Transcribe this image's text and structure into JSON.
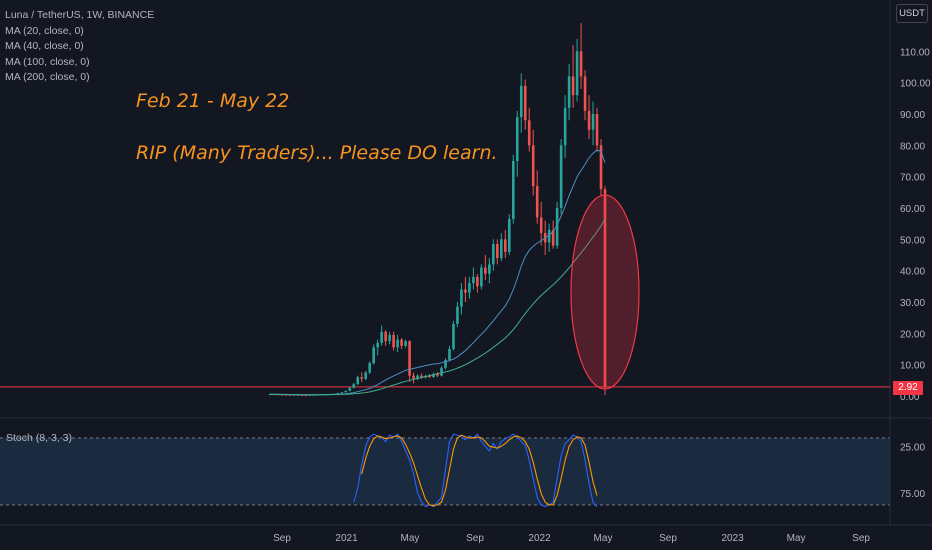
{
  "legend": {
    "symbol": "Luna / TetherUS, 1W, BINANCE",
    "indicators": [
      "MA (20, close, 0)",
      "MA (40, close, 0)",
      "MA (100, close, 0)",
      "MA (200, close, 0)"
    ]
  },
  "annotations": {
    "line1": "Feb 21 - May 22",
    "line2": "RIP (Many Traders)... Please DO learn."
  },
  "price_scale_unit": "USDT",
  "last_price_label": "2.92",
  "stoch_label": "Stoch (8, 3, 3)",
  "colors": {
    "background": "#131722",
    "up": "#26a69a",
    "down": "#ef5350",
    "ma_fast": "#4a90c2",
    "ma_slow": "#3fae8f",
    "annotation": "#f7941d",
    "stoch_k": "#2962ff",
    "stoch_d": "#ff9800",
    "highlight_ellipse": "#f23645"
  },
  "chart_data": [
    {
      "type": "candlestick",
      "yaxis": {
        "min": 0,
        "max": 120,
        "ticks": [
          0,
          10,
          20,
          30,
          40,
          50,
          60,
          70,
          80,
          90,
          100,
          110
        ],
        "tick_labels": [
          "0.00",
          "10.00",
          "20.00",
          "30.00",
          "40.00",
          "50.00",
          "60.00",
          "70.00",
          "80.00",
          "90.00",
          "100.00",
          "110.00"
        ]
      },
      "xaxis": {
        "tick_labels": [
          "Sep",
          "2021",
          "May",
          "Sep",
          "2022",
          "May",
          "Sep",
          "2023",
          "May",
          "Sep"
        ],
        "tick_dates": [
          "2020-09-01",
          "2021-01-01",
          "2021-05-01",
          "2021-09-01",
          "2022-01-01",
          "2022-05-01",
          "2022-09-01",
          "2023-01-01",
          "2023-05-01",
          "2023-09-01"
        ]
      },
      "candles": [
        {
          "o": 0.6,
          "h": 0.7,
          "l": 0.5,
          "c": 0.6
        },
        {
          "o": 0.6,
          "h": 0.7,
          "l": 0.5,
          "c": 0.55
        },
        {
          "o": 0.55,
          "h": 0.6,
          "l": 0.4,
          "c": 0.5
        },
        {
          "o": 0.5,
          "h": 0.6,
          "l": 0.4,
          "c": 0.45
        },
        {
          "o": 0.45,
          "h": 0.55,
          "l": 0.35,
          "c": 0.4
        },
        {
          "o": 0.4,
          "h": 0.5,
          "l": 0.3,
          "c": 0.35
        },
        {
          "o": 0.35,
          "h": 0.45,
          "l": 0.3,
          "c": 0.4
        },
        {
          "o": 0.4,
          "h": 0.5,
          "l": 0.3,
          "c": 0.35
        },
        {
          "o": 0.35,
          "h": 0.45,
          "l": 0.3,
          "c": 0.32
        },
        {
          "o": 0.32,
          "h": 0.4,
          "l": 0.25,
          "c": 0.3
        },
        {
          "o": 0.3,
          "h": 0.4,
          "l": 0.25,
          "c": 0.35
        },
        {
          "o": 0.35,
          "h": 0.45,
          "l": 0.3,
          "c": 0.4
        },
        {
          "o": 0.4,
          "h": 0.5,
          "l": 0.35,
          "c": 0.45
        },
        {
          "o": 0.45,
          "h": 0.6,
          "l": 0.4,
          "c": 0.5
        },
        {
          "o": 0.5,
          "h": 0.6,
          "l": 0.45,
          "c": 0.55
        },
        {
          "o": 0.55,
          "h": 0.7,
          "l": 0.5,
          "c": 0.6
        },
        {
          "o": 0.6,
          "h": 0.8,
          "l": 0.55,
          "c": 0.7
        },
        {
          "o": 0.7,
          "h": 1.0,
          "l": 0.6,
          "c": 0.9
        },
        {
          "o": 0.9,
          "h": 1.3,
          "l": 0.8,
          "c": 1.2
        },
        {
          "o": 1.2,
          "h": 1.8,
          "l": 1.1,
          "c": 1.6
        },
        {
          "o": 1.6,
          "h": 3.0,
          "l": 1.5,
          "c": 2.6
        },
        {
          "o": 2.6,
          "h": 4.2,
          "l": 2.4,
          "c": 3.8
        },
        {
          "o": 3.8,
          "h": 6.5,
          "l": 3.5,
          "c": 6.0
        },
        {
          "o": 6.0,
          "h": 7.5,
          "l": 4.5,
          "c": 5.5
        },
        {
          "o": 5.5,
          "h": 8.0,
          "l": 5.0,
          "c": 7.5
        },
        {
          "o": 7.5,
          "h": 11.0,
          "l": 7.0,
          "c": 10.5
        },
        {
          "o": 10.5,
          "h": 16.5,
          "l": 10.0,
          "c": 15.5
        },
        {
          "o": 15.5,
          "h": 18.0,
          "l": 13.0,
          "c": 17.0
        },
        {
          "o": 17.0,
          "h": 22.5,
          "l": 16.0,
          "c": 20.5
        },
        {
          "o": 20.5,
          "h": 21.0,
          "l": 16.0,
          "c": 17.5
        },
        {
          "o": 17.5,
          "h": 20.5,
          "l": 16.5,
          "c": 19.5
        },
        {
          "o": 19.5,
          "h": 20.5,
          "l": 14.5,
          "c": 15.5
        },
        {
          "o": 15.5,
          "h": 19.5,
          "l": 14.0,
          "c": 18.0
        },
        {
          "o": 18.0,
          "h": 18.5,
          "l": 15.0,
          "c": 16.0
        },
        {
          "o": 16.0,
          "h": 18.0,
          "l": 15.5,
          "c": 17.5
        },
        {
          "o": 17.5,
          "h": 17.8,
          "l": 4.5,
          "c": 6.5
        },
        {
          "o": 6.5,
          "h": 7.5,
          "l": 4.0,
          "c": 5.5
        },
        {
          "o": 5.5,
          "h": 7.0,
          "l": 5.0,
          "c": 6.5
        },
        {
          "o": 6.5,
          "h": 7.2,
          "l": 5.5,
          "c": 6.0
        },
        {
          "o": 6.0,
          "h": 6.8,
          "l": 5.6,
          "c": 6.4
        },
        {
          "o": 6.4,
          "h": 7.0,
          "l": 5.8,
          "c": 6.0
        },
        {
          "o": 6.0,
          "h": 7.5,
          "l": 5.8,
          "c": 7.0
        },
        {
          "o": 7.0,
          "h": 7.6,
          "l": 6.0,
          "c": 6.5
        },
        {
          "o": 6.5,
          "h": 9.5,
          "l": 6.2,
          "c": 9.0
        },
        {
          "o": 9.0,
          "h": 12.0,
          "l": 8.5,
          "c": 11.5
        },
        {
          "o": 11.5,
          "h": 16.0,
          "l": 11.0,
          "c": 15.0
        },
        {
          "o": 15.0,
          "h": 24.0,
          "l": 14.5,
          "c": 23.0
        },
        {
          "o": 23.0,
          "h": 30.0,
          "l": 22.0,
          "c": 28.5
        },
        {
          "o": 28.5,
          "h": 36.0,
          "l": 26.0,
          "c": 34.0
        },
        {
          "o": 34.0,
          "h": 38.0,
          "l": 30.0,
          "c": 33.0
        },
        {
          "o": 33.0,
          "h": 38.0,
          "l": 31.0,
          "c": 36.0
        },
        {
          "o": 36.0,
          "h": 41.0,
          "l": 34.0,
          "c": 38.0
        },
        {
          "o": 38.0,
          "h": 39.0,
          "l": 33.0,
          "c": 35.0
        },
        {
          "o": 35.0,
          "h": 42.0,
          "l": 34.0,
          "c": 41.0
        },
        {
          "o": 41.0,
          "h": 45.0,
          "l": 37.0,
          "c": 39.0
        },
        {
          "o": 39.0,
          "h": 44.0,
          "l": 36.0,
          "c": 42.0
        },
        {
          "o": 42.0,
          "h": 50.0,
          "l": 40.0,
          "c": 48.5
        },
        {
          "o": 48.5,
          "h": 50.0,
          "l": 42.0,
          "c": 44.0
        },
        {
          "o": 44.0,
          "h": 52.0,
          "l": 43.0,
          "c": 50.0
        },
        {
          "o": 50.0,
          "h": 53.0,
          "l": 44.0,
          "c": 46.0
        },
        {
          "o": 46.0,
          "h": 58.0,
          "l": 45.0,
          "c": 56.5
        },
        {
          "o": 56.5,
          "h": 77.0,
          "l": 55.0,
          "c": 75.0
        },
        {
          "o": 75.0,
          "h": 91.0,
          "l": 70.0,
          "c": 89.0
        },
        {
          "o": 89.0,
          "h": 103.0,
          "l": 84.0,
          "c": 99.0
        },
        {
          "o": 99.0,
          "h": 101.0,
          "l": 85.0,
          "c": 88.0
        },
        {
          "o": 88.0,
          "h": 92.0,
          "l": 78.0,
          "c": 80.0
        },
        {
          "o": 80.0,
          "h": 85.0,
          "l": 64.0,
          "c": 67.0
        },
        {
          "o": 67.0,
          "h": 72.0,
          "l": 55.0,
          "c": 57.0
        },
        {
          "o": 57.0,
          "h": 62.0,
          "l": 48.0,
          "c": 52.0
        },
        {
          "o": 52.0,
          "h": 56.0,
          "l": 45.0,
          "c": 49.0
        },
        {
          "o": 49.0,
          "h": 55.0,
          "l": 46.0,
          "c": 53.0
        },
        {
          "o": 53.0,
          "h": 56.0,
          "l": 47.0,
          "c": 48.0
        },
        {
          "o": 48.0,
          "h": 62.0,
          "l": 47.0,
          "c": 60.0
        },
        {
          "o": 60.0,
          "h": 82.0,
          "l": 58.0,
          "c": 80.0
        },
        {
          "o": 80.0,
          "h": 96.0,
          "l": 76.0,
          "c": 92.0
        },
        {
          "o": 92.0,
          "h": 106.0,
          "l": 88.0,
          "c": 102.0
        },
        {
          "o": 102.0,
          "h": 112.0,
          "l": 92.0,
          "c": 96.0
        },
        {
          "o": 96.0,
          "h": 114.0,
          "l": 94.0,
          "c": 110.0
        },
        {
          "o": 110.0,
          "h": 119.0,
          "l": 98.0,
          "c": 102.0
        },
        {
          "o": 102.0,
          "h": 104.0,
          "l": 88.0,
          "c": 91.0
        },
        {
          "o": 91.0,
          "h": 96.0,
          "l": 82.0,
          "c": 85.0
        },
        {
          "o": 85.0,
          "h": 94.0,
          "l": 80.0,
          "c": 90.0
        },
        {
          "o": 90.0,
          "h": 92.0,
          "l": 78.0,
          "c": 80.0
        },
        {
          "o": 80.0,
          "h": 82.0,
          "l": 64.0,
          "c": 66.0
        },
        {
          "o": 66.0,
          "h": 67.0,
          "l": 0.3,
          "c": 2.92
        }
      ],
      "ma_fast": [
        0.6,
        0.58,
        0.55,
        0.52,
        0.5,
        0.48,
        0.46,
        0.44,
        0.42,
        0.4,
        0.4,
        0.41,
        0.42,
        0.44,
        0.46,
        0.48,
        0.5,
        0.55,
        0.62,
        0.72,
        0.9,
        1.1,
        1.4,
        1.7,
        2.0,
        2.4,
        3.0,
        3.6,
        4.4,
        5.1,
        5.8,
        6.4,
        7.0,
        7.6,
        8.2,
        8.5,
        8.8,
        9.1,
        9.4,
        9.7,
        10.0,
        10.2,
        10.3,
        10.6,
        10.9,
        11.3,
        11.8,
        12.5,
        13.5,
        14.5,
        15.8,
        17.0,
        18.4,
        19.7,
        21.0,
        22.5,
        24.0,
        25.6,
        27.2,
        28.8,
        31.0,
        34.0,
        37.5,
        41.5,
        44.5,
        46.5,
        47.8,
        48.8,
        49.6,
        50.5,
        51.3,
        52.5,
        54.5,
        57.5,
        60.5,
        64.0,
        67.0,
        70.0,
        72.0,
        74.0,
        76.0,
        77.5,
        78.5,
        78.0,
        74.5
      ],
      "ma_slow": [
        0.5,
        0.5,
        0.49,
        0.48,
        0.47,
        0.46,
        0.45,
        0.44,
        0.43,
        0.42,
        0.41,
        0.41,
        0.41,
        0.42,
        0.43,
        0.44,
        0.45,
        0.47,
        0.5,
        0.55,
        0.62,
        0.7,
        0.8,
        0.95,
        1.1,
        1.3,
        1.6,
        1.9,
        2.3,
        2.7,
        3.1,
        3.5,
        3.9,
        4.3,
        4.7,
        5.0,
        5.3,
        5.6,
        5.9,
        6.2,
        6.5,
        6.8,
        7.1,
        7.4,
        7.7,
        8.0,
        8.4,
        8.9,
        9.4,
        10.0,
        10.7,
        11.4,
        12.1,
        12.9,
        13.7,
        14.6,
        15.5,
        16.5,
        17.5,
        18.5,
        19.8,
        21.2,
        22.8,
        24.6,
        26.3,
        27.9,
        29.4,
        30.8,
        32.1,
        33.3,
        34.4,
        35.5,
        36.7,
        38.0,
        39.4,
        40.9,
        42.5,
        44.1,
        45.7,
        47.3,
        49.0,
        50.7,
        52.4,
        54.3,
        56.5
      ]
    },
    {
      "type": "line",
      "title": "Stoch (8, 3, 3)",
      "yaxis": {
        "min": 0,
        "max": 100,
        "tick_labels": [
          "25.00",
          "75.00"
        ],
        "bands": [
          20,
          80
        ]
      },
      "series": [
        {
          "values": [
            null,
            null,
            null,
            null,
            null,
            null,
            null,
            null,
            null,
            null,
            null,
            null,
            null,
            null,
            null,
            null,
            null,
            null,
            null,
            null,
            null,
            15,
            30,
            55,
            75,
            85,
            88,
            86,
            84,
            80,
            87,
            85,
            88,
            80,
            70,
            60,
            45,
            25,
            15,
            10,
            12,
            10,
            15,
            20,
            50,
            80,
            88,
            87,
            85,
            82,
            86,
            84,
            88,
            80,
            75,
            70,
            78,
            72,
            80,
            83,
            85,
            88,
            85,
            80,
            76,
            60,
            40,
            20,
            12,
            10,
            12,
            15,
            40,
            65,
            78,
            82,
            87,
            85,
            80,
            60,
            35,
            15,
            10
          ]
        },
        {
          "values": [
            null,
            null,
            null,
            null,
            null,
            null,
            null,
            null,
            null,
            null,
            null,
            null,
            null,
            null,
            null,
            null,
            null,
            null,
            null,
            null,
            null,
            null,
            null,
            45,
            62,
            75,
            83,
            86,
            85,
            83,
            84,
            85,
            86,
            84,
            77,
            68,
            57,
            43,
            30,
            18,
            12,
            11,
            12,
            15,
            28,
            50,
            72,
            84,
            87,
            85,
            84,
            84,
            85,
            84,
            80,
            75,
            74,
            73,
            75,
            78,
            82,
            85,
            86,
            84,
            80,
            72,
            58,
            40,
            24,
            15,
            12,
            12,
            22,
            40,
            60,
            75,
            82,
            85,
            84,
            76,
            58,
            37,
            22
          ]
        }
      ]
    }
  ]
}
